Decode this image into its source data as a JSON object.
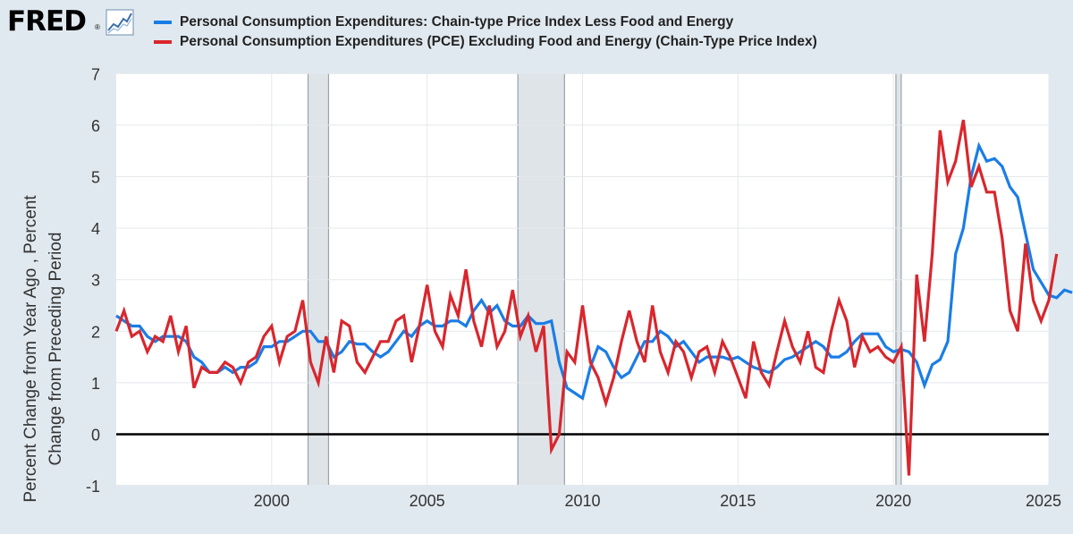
{
  "header": {
    "logo_text": "FRED",
    "logo_reg": "®"
  },
  "colors": {
    "series1": "#1a7de6",
    "series2": "#d9262d",
    "recession": "#dfe4e9",
    "background": "#e1e9f0"
  },
  "chart_data": {
    "type": "line",
    "title": "",
    "xlabel": "",
    "ylabel": "Percent Change from Year Ago , Percent Change from Preceding Period",
    "ylabel_lines": [
      "Percent Change from Year Ago , Percent",
      "Change from Preceding Period"
    ],
    "xlim": [
      1995.0,
      2025.0
    ],
    "ylim": [
      -1,
      7
    ],
    "x_ticks": [
      2000,
      2005,
      2010,
      2015,
      2020,
      2025
    ],
    "y_ticks": [
      -1,
      0,
      1,
      2,
      3,
      4,
      5,
      6,
      7
    ],
    "recessions": [
      [
        2001.17,
        2001.83
      ],
      [
        2007.92,
        2009.42
      ],
      [
        2020.08,
        2020.25
      ]
    ],
    "series": [
      {
        "name": "Personal Consumption Expenditures: Chain-type Price Index Less Food and Energy",
        "color": "#1a7de6",
        "start_year": 1995.0,
        "step": 0.25,
        "values": [
          2.3,
          2.2,
          2.1,
          2.1,
          1.9,
          1.8,
          1.9,
          1.9,
          1.9,
          1.8,
          1.5,
          1.4,
          1.2,
          1.2,
          1.3,
          1.2,
          1.3,
          1.3,
          1.4,
          1.7,
          1.7,
          1.8,
          1.8,
          1.9,
          2.0,
          2.0,
          1.8,
          1.8,
          1.5,
          1.6,
          1.8,
          1.75,
          1.75,
          1.6,
          1.5,
          1.6,
          1.8,
          2.0,
          1.9,
          2.1,
          2.2,
          2.1,
          2.1,
          2.2,
          2.2,
          2.1,
          2.4,
          2.6,
          2.35,
          2.5,
          2.2,
          2.1,
          2.1,
          2.3,
          2.15,
          2.15,
          2.2,
          1.4,
          0.9,
          0.8,
          0.7,
          1.3,
          1.7,
          1.6,
          1.3,
          1.1,
          1.2,
          1.5,
          1.8,
          1.8,
          2.0,
          1.9,
          1.7,
          1.8,
          1.6,
          1.4,
          1.5,
          1.5,
          1.5,
          1.45,
          1.5,
          1.4,
          1.3,
          1.25,
          1.2,
          1.3,
          1.45,
          1.5,
          1.6,
          1.7,
          1.8,
          1.7,
          1.5,
          1.5,
          1.6,
          1.8,
          1.95,
          1.95,
          1.95,
          1.7,
          1.6,
          1.65,
          1.6,
          1.4,
          0.95,
          1.35,
          1.45,
          1.8,
          3.5,
          4.0,
          5.0,
          5.6,
          5.3,
          5.35,
          5.2,
          4.8,
          4.6,
          3.9,
          3.2,
          2.95,
          2.7,
          2.65,
          2.8,
          2.75
        ]
      },
      {
        "name": "Personal Consumption Expenditures (PCE) Excluding Food and Energy (Chain-Type Price Index)",
        "color": "#d9262d",
        "start_year": 1995.0,
        "step": 0.25,
        "values": [
          2.0,
          2.4,
          1.9,
          2.0,
          1.6,
          1.9,
          1.8,
          2.3,
          1.6,
          2.1,
          0.9,
          1.3,
          1.2,
          1.2,
          1.4,
          1.3,
          1.0,
          1.4,
          1.5,
          1.9,
          2.1,
          1.4,
          1.9,
          2.0,
          2.6,
          1.4,
          1.0,
          1.9,
          1.2,
          2.2,
          2.1,
          1.4,
          1.2,
          1.5,
          1.8,
          1.8,
          2.2,
          2.3,
          1.4,
          2.1,
          2.9,
          2.0,
          1.7,
          2.7,
          2.3,
          3.2,
          2.2,
          1.7,
          2.5,
          1.7,
          2.0,
          2.8,
          1.9,
          2.3,
          1.6,
          2.1,
          -0.3,
          0.0,
          1.6,
          1.4,
          2.5,
          1.4,
          1.1,
          0.6,
          1.1,
          1.8,
          2.4,
          1.8,
          1.4,
          2.5,
          1.6,
          1.2,
          1.8,
          1.6,
          1.1,
          1.6,
          1.7,
          1.2,
          1.8,
          1.5,
          1.1,
          0.7,
          1.8,
          1.2,
          0.95,
          1.6,
          2.2,
          1.7,
          1.4,
          2.0,
          1.3,
          1.2,
          2.0,
          2.6,
          2.2,
          1.3,
          1.9,
          1.6,
          1.7,
          1.5,
          1.4,
          1.7,
          -0.8,
          3.1,
          1.8,
          3.5,
          5.9,
          4.9,
          5.3,
          6.1,
          4.8,
          5.2,
          4.7,
          4.7,
          3.8,
          2.4,
          2.0,
          3.7,
          2.6,
          2.2,
          2.6,
          3.5
        ]
      }
    ]
  }
}
